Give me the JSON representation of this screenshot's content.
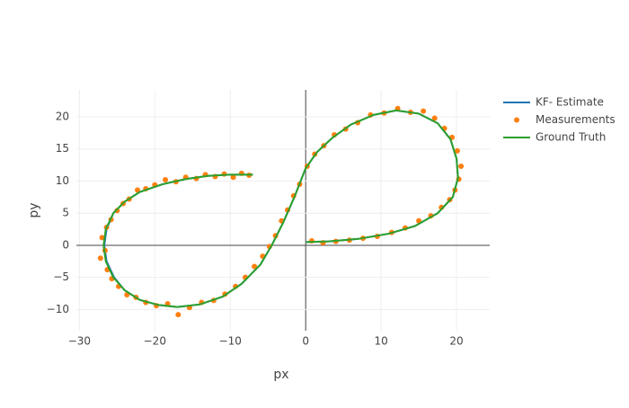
{
  "chart_data": {
    "type": "scatter",
    "x_label": "px",
    "y_label": "py",
    "xlim": [
      -30.4,
      24.4
    ],
    "ylim": [
      -13.3,
      24.2
    ],
    "xticks": [
      {
        "value": -30,
        "label": "−30"
      },
      {
        "value": -20,
        "label": "−20"
      },
      {
        "value": -10,
        "label": "−10"
      },
      0,
      10,
      20
    ],
    "yticks": [
      {
        "value": -10,
        "label": "−10"
      },
      {
        "value": -5,
        "label": "−5"
      },
      0,
      5,
      10,
      15,
      20
    ],
    "grid": true,
    "legend": "top-right",
    "series": [
      {
        "name": "KF- Estimate",
        "mode": "lines",
        "color": "#1f77b4",
        "x": [
          -7,
          -10,
          -13,
          -16,
          -19,
          -22,
          -24,
          -25.5,
          -26.4,
          -26.7,
          -26.4,
          -25.4,
          -24,
          -22,
          -19.5,
          -17,
          -14,
          -11,
          -8.5,
          -6,
          -4.5,
          -3,
          -1.5,
          0,
          1.5,
          3.5,
          6,
          9,
          12,
          15,
          17.5,
          19.2,
          20,
          20.2,
          19.5,
          17.5,
          14.5,
          11,
          7,
          3,
          0
        ],
        "y": [
          11,
          11,
          10.8,
          10.3,
          9.5,
          8.3,
          6.8,
          5,
          2.5,
          0,
          -2.5,
          -5,
          -7,
          -8.5,
          -9.3,
          -9.6,
          -9.2,
          -8,
          -6,
          -3,
          0,
          3.5,
          7.5,
          12,
          14.5,
          16.7,
          18.8,
          20.3,
          21,
          20.5,
          19,
          16.5,
          13.5,
          10.5,
          7.5,
          5,
          3,
          1.8,
          1,
          0.6,
          0.5
        ]
      },
      {
        "name": "Measurements",
        "mode": "markers",
        "color": "#ff7f0e",
        "x": [
          -7.5,
          -8.5,
          -9.6,
          -10.8,
          -12,
          -13.3,
          -14.5,
          -15.9,
          -17.2,
          -18.6,
          -20,
          -21.2,
          -22.3,
          -23.4,
          -24.2,
          -25,
          -25.8,
          -26.4,
          -27,
          -26.6,
          -27.2,
          -26.3,
          -25.7,
          -24.8,
          -23.7,
          -22.5,
          -21.2,
          -19.8,
          -18.3,
          -16.9,
          -15.4,
          -13.8,
          -12.2,
          -10.7,
          -9.3,
          -8,
          -6.8,
          -5.7,
          -4.8,
          -4,
          -3.2,
          -2.4,
          -1.6,
          -0.8,
          0.2,
          1.2,
          2.4,
          3.8,
          5.3,
          6.9,
          8.6,
          10.4,
          12.2,
          13.9,
          15.6,
          17.1,
          18.4,
          19.4,
          20.1,
          20.6,
          20.3,
          19.8,
          19.1,
          18,
          16.6,
          15,
          13.2,
          11.4,
          9.5,
          7.6,
          5.8,
          4,
          2.3,
          0.8
        ],
        "y": [
          10.9,
          11.2,
          10.6,
          11.1,
          10.7,
          11,
          10.4,
          10.6,
          9.9,
          10.2,
          9.4,
          8.8,
          8.6,
          7.2,
          6.5,
          5.4,
          4,
          2.8,
          1.2,
          -0.8,
          -2,
          -3.8,
          -5.2,
          -6.4,
          -7.7,
          -8.1,
          -8.9,
          -9.4,
          -9.1,
          -10.8,
          -9.7,
          -8.9,
          -8.6,
          -7.6,
          -6.4,
          -5,
          -3.3,
          -1.7,
          -0.2,
          1.5,
          3.8,
          5.5,
          7.7,
          9.5,
          12.3,
          14.2,
          15.5,
          17.2,
          18.1,
          19.1,
          20.3,
          20.6,
          21.3,
          20.7,
          20.9,
          19.8,
          18.2,
          16.8,
          14.7,
          12.3,
          10.3,
          8.6,
          7.1,
          5.9,
          4.6,
          3.8,
          2.7,
          2,
          1.4,
          1.1,
          0.8,
          0.6,
          0.4,
          0.7
        ]
      },
      {
        "name": "Ground Truth",
        "mode": "lines",
        "color": "#2ca02c",
        "x": [
          -7,
          -10,
          -13,
          -16,
          -19,
          -22,
          -24,
          -25.5,
          -26.5,
          -26.8,
          -26.5,
          -25.5,
          -24,
          -22,
          -19.5,
          -17,
          -14,
          -11,
          -8.5,
          -6,
          -4.5,
          -3,
          -1.5,
          0,
          1.5,
          3.5,
          6,
          9,
          12,
          15,
          17.5,
          19.2,
          20,
          20.2,
          19.5,
          17.5,
          14.5,
          11,
          7,
          3,
          0
        ],
        "y": [
          11,
          11,
          10.8,
          10.3,
          9.5,
          8.3,
          6.8,
          5,
          2.5,
          0,
          -2.5,
          -5,
          -7,
          -8.5,
          -9.3,
          -9.6,
          -9.2,
          -8,
          -6,
          -3,
          0,
          3.5,
          7.5,
          12,
          14.5,
          16.7,
          18.8,
          20.3,
          21,
          20.5,
          19,
          16.5,
          13.5,
          10.5,
          7.5,
          5,
          3,
          1.8,
          1,
          0.6,
          0.5
        ]
      }
    ]
  }
}
